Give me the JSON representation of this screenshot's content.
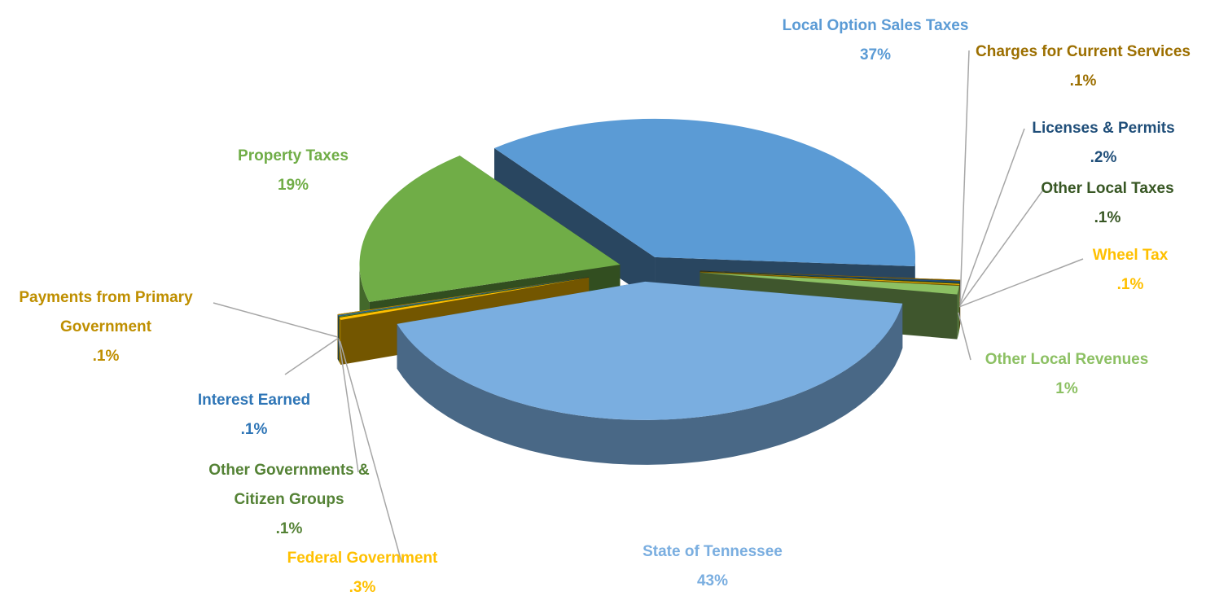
{
  "chart_data": {
    "type": "pie3d",
    "series": [
      {
        "name": "Local Option Sales Taxes",
        "value": 37,
        "value_label": "37%",
        "color": "#5b9bd5"
      },
      {
        "name": "Charges for Current Services",
        "value": 0.1,
        "value_label": ".1%",
        "color": "#9c6f00"
      },
      {
        "name": "Licenses & Permits",
        "value": 0.2,
        "value_label": ".2%",
        "color": "#1f4e79"
      },
      {
        "name": "Other Local Taxes",
        "value": 0.1,
        "value_label": ".1%",
        "color": "#375623"
      },
      {
        "name": "Wheel Tax",
        "value": 0.1,
        "value_label": ".1%",
        "color": "#ffc000"
      },
      {
        "name": "Other Local Revenues",
        "value": 1,
        "value_label": "1%",
        "color": "#8cc063"
      },
      {
        "name": "State of Tennessee",
        "value": 43,
        "value_label": "43%",
        "color": "#7aaee0"
      },
      {
        "name": "Federal Government",
        "value": 0.3,
        "value_label": ".3%",
        "color": "#ffc000"
      },
      {
        "name": "Other Governments & Citizen Groups",
        "value": 0.1,
        "value_label": ".1%",
        "color": "#548235"
      },
      {
        "name": "Interest Earned",
        "value": 0.1,
        "value_label": ".1%",
        "color": "#2e75b6"
      },
      {
        "name": "Payments from Primary Government",
        "value": 0.1,
        "value_label": ".1%",
        "color": "#bf8f00"
      },
      {
        "name": "Property Taxes",
        "value": 19,
        "value_label": "19%",
        "color": "#70ad47"
      }
    ]
  }
}
